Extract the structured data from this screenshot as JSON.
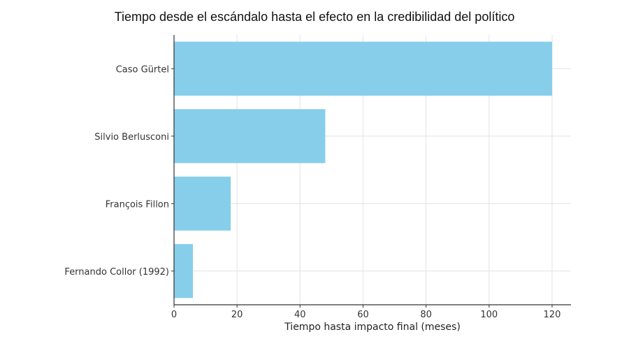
{
  "chart_data": {
    "type": "bar",
    "orientation": "horizontal",
    "title": "Tiempo desde el escándalo hasta el efecto en la credibilidad del político",
    "xlabel": "Tiempo hasta impacto final (meses)",
    "ylabel": "",
    "categories": [
      "Caso Gürtel",
      "Silvio Berlusconi",
      "François Fillon",
      "Fernando Collor (1992)"
    ],
    "values": [
      120,
      48,
      18,
      6
    ],
    "xlim": [
      0,
      126
    ],
    "xticks": [
      0,
      20,
      40,
      60,
      80,
      100,
      120
    ],
    "grid": true,
    "bar_color": "#87CEEB"
  }
}
